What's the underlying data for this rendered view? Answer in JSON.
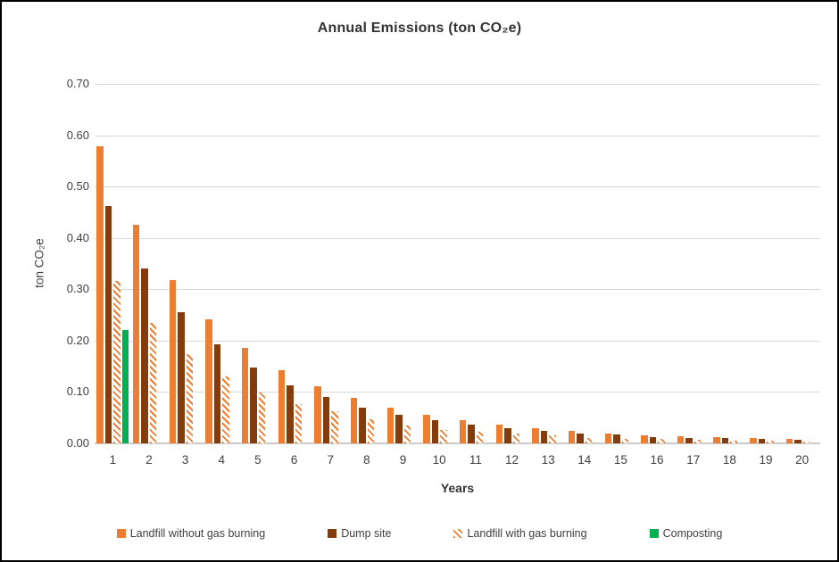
{
  "chart_data": {
    "type": "bar",
    "title": "Annual Emissions (ton CO₂e)",
    "xlabel": "Years",
    "ylabel": "ton CO₂e",
    "ylim": [
      0,
      0.7
    ],
    "ytick_step": 0.1,
    "ytick_labels": [
      "0.00",
      "0.10",
      "0.20",
      "0.30",
      "0.40",
      "0.50",
      "0.60",
      "0.70"
    ],
    "grid": true,
    "gridline_color": "#D9D9D9",
    "axis_line_color": "#CBCBCB",
    "text_color": "#404040",
    "legend_position": "bottom",
    "categories": [
      "1",
      "2",
      "3",
      "4",
      "5",
      "6",
      "7",
      "8",
      "9",
      "10",
      "11",
      "12",
      "13",
      "14",
      "15",
      "16",
      "17",
      "18",
      "19",
      "20"
    ],
    "series": [
      {
        "name": "Landfill without gas burning",
        "color": "#ED7D31",
        "fill": "solid",
        "values": [
          0.578,
          0.426,
          0.318,
          0.241,
          0.186,
          0.143,
          0.112,
          0.089,
          0.07,
          0.056,
          0.045,
          0.037,
          0.03,
          0.025,
          0.02,
          0.016,
          0.014,
          0.012,
          0.01,
          0.009
        ]
      },
      {
        "name": "Dump site",
        "color": "#843C0C",
        "fill": "solid",
        "values": [
          0.462,
          0.34,
          0.256,
          0.193,
          0.147,
          0.113,
          0.09,
          0.07,
          0.056,
          0.045,
          0.036,
          0.03,
          0.025,
          0.02,
          0.017,
          0.013,
          0.011,
          0.01,
          0.008,
          0.007
        ]
      },
      {
        "name": "Landfill with gas burning",
        "color": "#ED7D31",
        "fill": "diagonal-hatch",
        "hatch_background": "#FFFFFF",
        "values": [
          0.317,
          0.234,
          0.174,
          0.13,
          0.099,
          0.077,
          0.062,
          0.047,
          0.035,
          0.027,
          0.022,
          0.02,
          0.015,
          0.01,
          0.009,
          0.008,
          0.007,
          0.006,
          0.005,
          0.004
        ]
      },
      {
        "name": "Composting",
        "color": "#00B050",
        "fill": "solid",
        "values": [
          0.221,
          0,
          0,
          0,
          0,
          0,
          0,
          0,
          0,
          0,
          0,
          0,
          0,
          0,
          0,
          0,
          0,
          0,
          0,
          0
        ]
      }
    ]
  }
}
